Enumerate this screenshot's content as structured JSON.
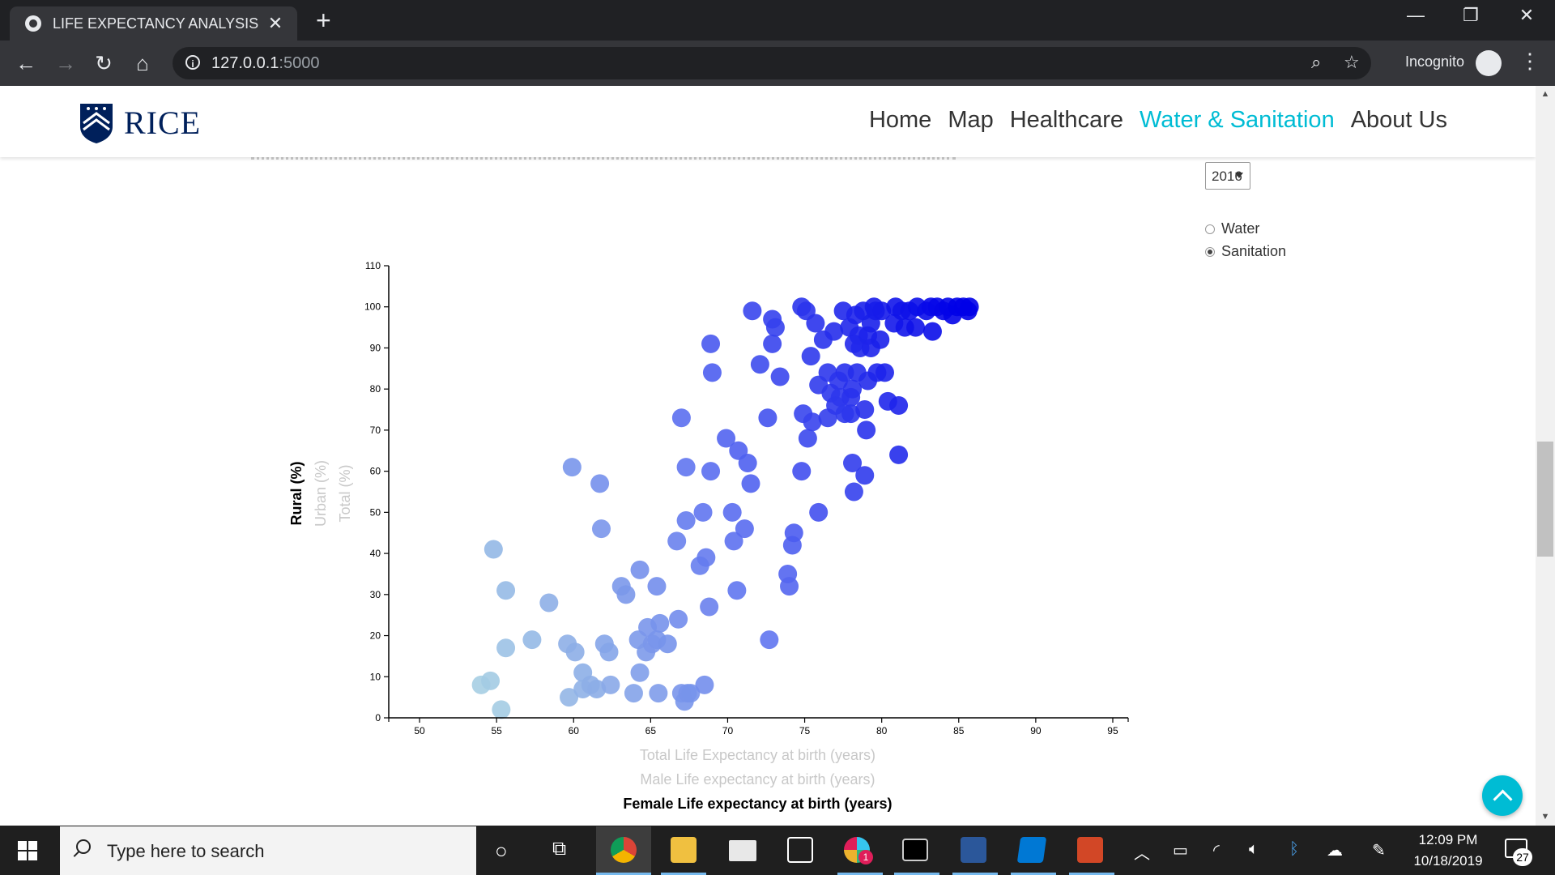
{
  "browser": {
    "tab_title": "LIFE EXPECTANCY ANALYSIS",
    "url_host": "127.0.0.1",
    "url_port": ":5000",
    "incognito_label": "Incognito"
  },
  "site": {
    "logo_text": "RICE",
    "nav": [
      {
        "label": "Home",
        "active": false
      },
      {
        "label": "Map",
        "active": false
      },
      {
        "label": "Healthcare",
        "active": false
      },
      {
        "label": "Water & Sanitation",
        "active": true
      },
      {
        "label": "About Us",
        "active": false
      }
    ],
    "accent": "#00bcd4"
  },
  "controls": {
    "year_value": "2016",
    "radios": [
      {
        "label": "Water",
        "checked": false
      },
      {
        "label": "Sanitation",
        "checked": true
      }
    ]
  },
  "chart_data": {
    "type": "scatter",
    "x_axis": {
      "range": [
        48,
        96
      ],
      "ticks": [
        50,
        55,
        60,
        65,
        70,
        75,
        80,
        85,
        90,
        95
      ]
    },
    "y_axis": {
      "range": [
        0,
        110
      ],
      "ticks": [
        0,
        10,
        20,
        30,
        40,
        50,
        60,
        70,
        80,
        90,
        100,
        110
      ]
    },
    "x_labels": [
      {
        "text": "Total Life Expectancy at birth (years)",
        "active": false
      },
      {
        "text": "Male Life expectancy at birth (years)",
        "active": false
      },
      {
        "text": "Female Life expectancy at birth (years)",
        "active": true
      }
    ],
    "y_labels": [
      {
        "text": "Rural (%)",
        "active": true
      },
      {
        "text": "Urban (%)",
        "active": false
      },
      {
        "text": "Total (%)",
        "active": false
      }
    ],
    "grid": false,
    "colors": {
      "low": "#a6cee3",
      "mid": "#5b6ff0",
      "high": "#0000e8"
    },
    "points": [
      [
        54.8,
        41
      ],
      [
        55.6,
        31
      ],
      [
        55.6,
        17
      ],
      [
        54,
        8
      ],
      [
        54.6,
        9
      ],
      [
        55.3,
        2
      ],
      [
        57.3,
        19
      ],
      [
        58.4,
        28
      ],
      [
        59.6,
        18
      ],
      [
        59.9,
        61
      ],
      [
        60.1,
        16
      ],
      [
        59.7,
        5
      ],
      [
        60.6,
        11
      ],
      [
        60.6,
        7
      ],
      [
        61.1,
        8
      ],
      [
        61.5,
        7
      ],
      [
        61.7,
        57
      ],
      [
        61.8,
        46
      ],
      [
        62,
        18
      ],
      [
        62.3,
        16
      ],
      [
        62.4,
        8
      ],
      [
        63.1,
        32
      ],
      [
        63.4,
        30
      ],
      [
        63.9,
        6
      ],
      [
        64.2,
        19
      ],
      [
        64.3,
        36
      ],
      [
        64.3,
        11
      ],
      [
        64.7,
        16
      ],
      [
        64.8,
        22
      ],
      [
        65.1,
        18
      ],
      [
        65.4,
        32
      ],
      [
        65.4,
        19
      ],
      [
        65.5,
        6
      ],
      [
        65.6,
        23
      ],
      [
        66.1,
        18
      ],
      [
        66.7,
        43
      ],
      [
        66.8,
        24
      ],
      [
        67,
        73
      ],
      [
        67,
        6
      ],
      [
        67.2,
        4
      ],
      [
        67.3,
        61
      ],
      [
        67.3,
        48
      ],
      [
        67.4,
        6
      ],
      [
        67.6,
        6
      ],
      [
        68.2,
        37
      ],
      [
        68.4,
        50
      ],
      [
        68.5,
        8
      ],
      [
        68.6,
        39
      ],
      [
        68.8,
        27
      ],
      [
        68.9,
        60
      ],
      [
        68.9,
        91
      ],
      [
        69,
        84
      ],
      [
        69.9,
        68
      ],
      [
        70.3,
        50
      ],
      [
        70.4,
        43
      ],
      [
        70.6,
        31
      ],
      [
        70.7,
        65
      ],
      [
        71.1,
        46
      ],
      [
        71.3,
        62
      ],
      [
        71.5,
        57
      ],
      [
        71.6,
        99
      ],
      [
        72.1,
        86
      ],
      [
        72.6,
        73
      ],
      [
        72.7,
        19
      ],
      [
        72.9,
        97
      ],
      [
        72.9,
        91
      ],
      [
        73.1,
        95
      ],
      [
        73.4,
        83
      ],
      [
        73.9,
        35
      ],
      [
        74,
        32
      ],
      [
        74.2,
        42
      ],
      [
        74.3,
        45
      ],
      [
        74.8,
        60
      ],
      [
        74.8,
        100
      ],
      [
        74.9,
        74
      ],
      [
        75.1,
        99
      ],
      [
        75.2,
        68
      ],
      [
        75.5,
        72
      ],
      [
        75.4,
        88
      ],
      [
        75.7,
        96
      ],
      [
        75.9,
        50
      ],
      [
        75.9,
        81
      ],
      [
        76.2,
        92
      ],
      [
        76.5,
        84
      ],
      [
        76.5,
        73
      ],
      [
        76.7,
        79
      ],
      [
        76.9,
        94
      ],
      [
        77,
        76
      ],
      [
        77.2,
        82
      ],
      [
        77.3,
        78
      ],
      [
        77.5,
        99
      ],
      [
        77.6,
        84
      ],
      [
        77.6,
        74
      ],
      [
        77.9,
        95
      ],
      [
        78,
        78
      ],
      [
        78,
        74
      ],
      [
        78.1,
        80
      ],
      [
        78.1,
        62
      ],
      [
        78.2,
        55
      ],
      [
        78.2,
        91
      ],
      [
        78.3,
        98
      ],
      [
        78.4,
        84
      ],
      [
        78.5,
        93
      ],
      [
        78.6,
        90
      ],
      [
        78.8,
        99
      ],
      [
        78.9,
        59
      ],
      [
        78.9,
        75
      ],
      [
        79,
        70
      ],
      [
        79.1,
        93
      ],
      [
        79.1,
        82
      ],
      [
        79.3,
        96
      ],
      [
        79.3,
        90
      ],
      [
        79.5,
        100
      ],
      [
        79.6,
        99
      ],
      [
        79.7,
        84
      ],
      [
        79.9,
        92
      ],
      [
        80,
        99
      ],
      [
        80.2,
        84
      ],
      [
        80.4,
        77
      ],
      [
        80.8,
        96
      ],
      [
        80.9,
        100
      ],
      [
        81.1,
        76
      ],
      [
        81.1,
        64
      ],
      [
        81.3,
        99
      ],
      [
        81.5,
        95
      ],
      [
        81.8,
        99
      ],
      [
        82.2,
        95
      ],
      [
        82.3,
        100
      ],
      [
        82.9,
        99
      ],
      [
        83.2,
        100
      ],
      [
        83.3,
        94
      ],
      [
        83.6,
        100
      ],
      [
        84,
        99
      ],
      [
        84.3,
        100
      ],
      [
        84.6,
        98
      ],
      [
        84.9,
        100
      ],
      [
        85.3,
        100
      ],
      [
        85.6,
        99
      ],
      [
        85.7,
        100
      ]
    ]
  },
  "taskbar": {
    "search_placeholder": "Type here to search",
    "time": "12:09 PM",
    "date": "10/18/2019",
    "notification_count": "27",
    "slack_badge": "1"
  }
}
